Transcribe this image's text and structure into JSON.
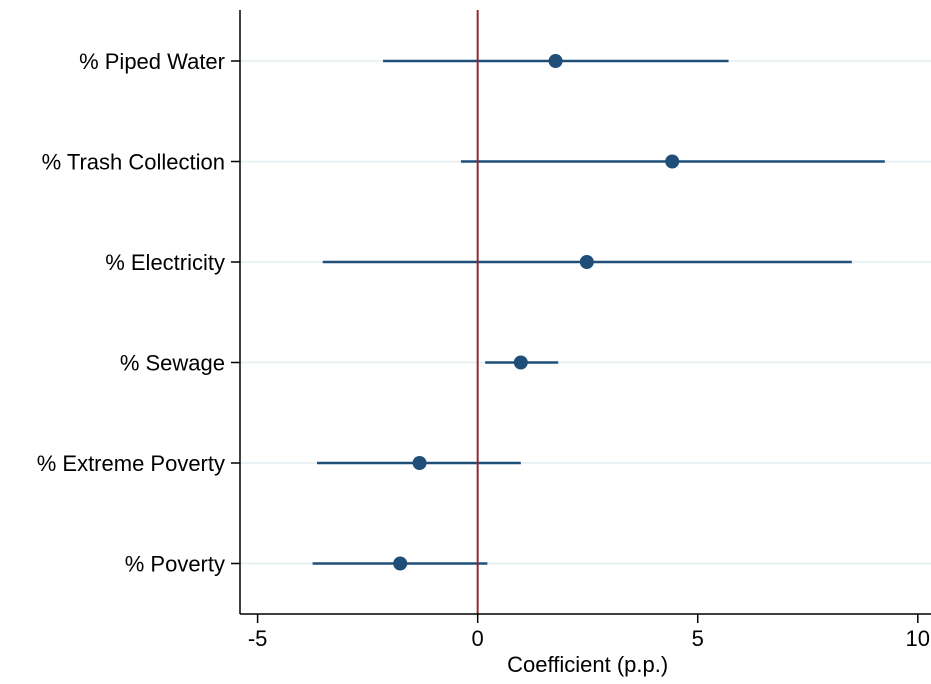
{
  "chart_data": {
    "type": "coefficient-plot",
    "title": "",
    "xlabel": "Coefficient (p.p.)",
    "ylabel": "",
    "xlim": [
      -5.4,
      10.3
    ],
    "xticks": [
      -5,
      0,
      5,
      10
    ],
    "xtick_labels": [
      "-5",
      "0",
      "5",
      "10"
    ],
    "reference_line_x": 0,
    "grid": "horizontal",
    "legend": "none",
    "categories": [
      "% Piped Water",
      "% Trash Collection",
      "% Electricity",
      "% Sewage",
      "% Extreme Poverty",
      "% Poverty"
    ],
    "estimates": [
      1.77,
      4.42,
      2.48,
      0.98,
      -1.32,
      -1.76
    ],
    "ci_lower": [
      -2.15,
      -0.38,
      -3.52,
      0.17,
      -3.65,
      -3.75
    ],
    "ci_upper": [
      5.7,
      9.25,
      8.5,
      1.83,
      0.98,
      0.22
    ],
    "colors": {
      "marker": "#1f4e79",
      "ci_line": "#1f4e79",
      "reference_line": "#8b2c33",
      "grid": "#e3eef2",
      "axis": "#000000"
    }
  }
}
